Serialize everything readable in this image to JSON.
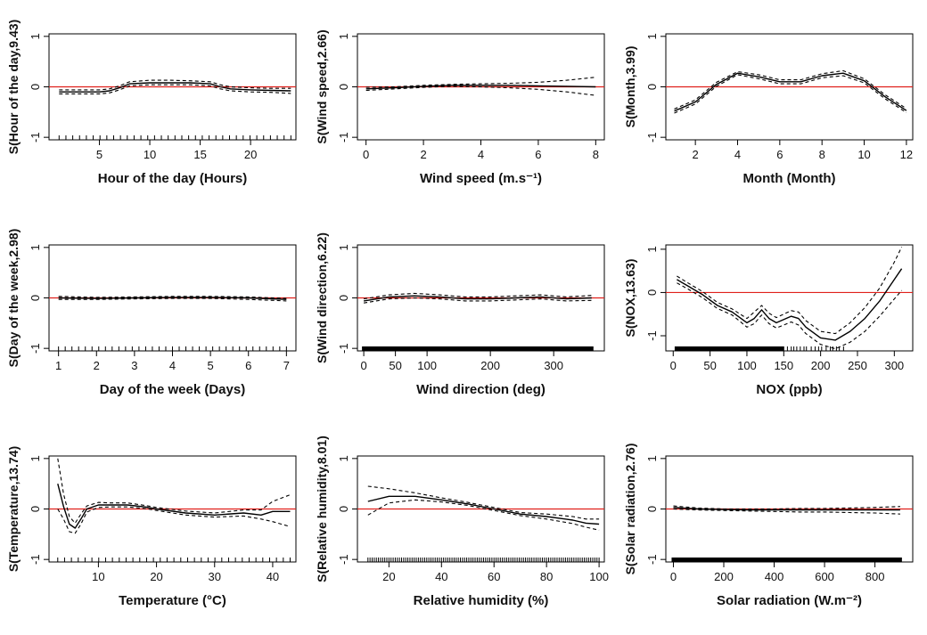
{
  "chart_data": [
    {
      "type": "line",
      "xlabel": "Hour of the day (Hours)",
      "ylabel": "S(Hour of the day,9.43)",
      "xlim": [
        0,
        24.5
      ],
      "ylim": [
        -1.05,
        1.05
      ],
      "xticks": [
        5,
        10,
        15,
        20
      ],
      "yticks": [
        -1.0,
        0.0,
        1.0
      ],
      "rug": "sparse",
      "series": [
        {
          "role": "estimate",
          "x": [
            1,
            3,
            5,
            6,
            7,
            8,
            10,
            12,
            14,
            16,
            17,
            18,
            20,
            22,
            24
          ],
          "values": [
            -0.1,
            -0.1,
            -0.1,
            -0.08,
            -0.02,
            0.06,
            0.08,
            0.08,
            0.08,
            0.06,
            0.0,
            -0.04,
            -0.06,
            -0.07,
            -0.08
          ]
        },
        {
          "role": "upper",
          "x": [
            1,
            3,
            5,
            6,
            7,
            8,
            10,
            12,
            14,
            16,
            17,
            18,
            20,
            22,
            24
          ],
          "values": [
            -0.06,
            -0.06,
            -0.06,
            -0.04,
            0.02,
            0.1,
            0.13,
            0.13,
            0.12,
            0.1,
            0.04,
            0.0,
            -0.02,
            -0.03,
            -0.03
          ]
        },
        {
          "role": "lower",
          "x": [
            1,
            3,
            5,
            6,
            7,
            8,
            10,
            12,
            14,
            16,
            17,
            18,
            20,
            22,
            24
          ],
          "values": [
            -0.14,
            -0.14,
            -0.14,
            -0.12,
            -0.06,
            0.02,
            0.04,
            0.04,
            0.04,
            0.02,
            -0.04,
            -0.08,
            -0.1,
            -0.11,
            -0.13
          ]
        }
      ]
    },
    {
      "type": "line",
      "xlabel": "Wind speed (m.s⁻¹)",
      "ylabel": "S(Wind speed,2.66)",
      "xlim": [
        -0.3,
        8.3
      ],
      "ylim": [
        -1.05,
        1.05
      ],
      "xticks": [
        0,
        2,
        4,
        6,
        8
      ],
      "yticks": [
        -1.0,
        0.0,
        1.0
      ],
      "rug": "none",
      "series": [
        {
          "role": "estimate",
          "x": [
            0,
            1,
            2,
            3,
            4,
            5,
            6,
            7,
            8
          ],
          "values": [
            -0.04,
            -0.02,
            0.01,
            0.03,
            0.03,
            0.03,
            0.02,
            0.01,
            0.0
          ]
        },
        {
          "role": "upper",
          "x": [
            0,
            1,
            2,
            3,
            4,
            5,
            6,
            7,
            8
          ],
          "values": [
            -0.01,
            0.0,
            0.03,
            0.05,
            0.06,
            0.07,
            0.09,
            0.13,
            0.19
          ]
        },
        {
          "role": "lower",
          "x": [
            0,
            1,
            2,
            3,
            4,
            5,
            6,
            7,
            8
          ],
          "values": [
            -0.07,
            -0.04,
            -0.01,
            0.01,
            0.0,
            -0.02,
            -0.05,
            -0.1,
            -0.17
          ]
        }
      ]
    },
    {
      "type": "line",
      "xlabel": "Month (Month)",
      "ylabel": "S(Month,3.99)",
      "xlim": [
        0.6,
        12.3
      ],
      "ylim": [
        -1.05,
        1.05
      ],
      "xticks": [
        2,
        4,
        6,
        8,
        10,
        12
      ],
      "yticks": [
        -1.0,
        0.0,
        1.0
      ],
      "rug": "none",
      "series": [
        {
          "role": "estimate",
          "x": [
            1,
            2,
            3,
            4,
            5,
            6,
            7,
            8,
            9,
            10,
            11,
            12
          ],
          "values": [
            -0.48,
            -0.3,
            0.05,
            0.27,
            0.2,
            0.1,
            0.1,
            0.22,
            0.27,
            0.12,
            -0.2,
            -0.47
          ]
        },
        {
          "role": "upper",
          "x": [
            1,
            2,
            3,
            4,
            5,
            6,
            7,
            8,
            9,
            10,
            11,
            12
          ],
          "values": [
            -0.44,
            -0.26,
            0.09,
            0.3,
            0.24,
            0.14,
            0.14,
            0.26,
            0.32,
            0.16,
            -0.16,
            -0.43
          ]
        },
        {
          "role": "lower",
          "x": [
            1,
            2,
            3,
            4,
            5,
            6,
            7,
            8,
            9,
            10,
            11,
            12
          ],
          "values": [
            -0.52,
            -0.34,
            0.01,
            0.24,
            0.16,
            0.06,
            0.06,
            0.18,
            0.22,
            0.08,
            -0.24,
            -0.51
          ]
        }
      ]
    },
    {
      "type": "line",
      "xlabel": "Day of the week (Days)",
      "ylabel": "S(Day of the week,2.98)",
      "xlim": [
        0.75,
        7.25
      ],
      "ylim": [
        -1.05,
        1.05
      ],
      "xticks": [
        1,
        2,
        3,
        4,
        5,
        6,
        7
      ],
      "yticks": [
        -1.0,
        0.0,
        1.0
      ],
      "rug": "sparse",
      "series": [
        {
          "role": "estimate",
          "x": [
            1,
            2,
            3,
            4,
            5,
            6,
            7
          ],
          "values": [
            0.0,
            -0.01,
            0.0,
            0.01,
            0.01,
            0.0,
            -0.03
          ]
        },
        {
          "role": "upper",
          "x": [
            1,
            2,
            3,
            4,
            5,
            6,
            7
          ],
          "values": [
            0.03,
            0.01,
            0.02,
            0.03,
            0.03,
            0.02,
            -0.01
          ]
        },
        {
          "role": "lower",
          "x": [
            1,
            2,
            3,
            4,
            5,
            6,
            7
          ],
          "values": [
            -0.03,
            -0.03,
            -0.02,
            -0.01,
            -0.01,
            -0.03,
            -0.06
          ]
        }
      ]
    },
    {
      "type": "line",
      "xlabel": "Wind direction (deg)",
      "ylabel": "S(Wind direction,6.22)",
      "xlim": [
        -10,
        380
      ],
      "ylim": [
        -1.05,
        1.05
      ],
      "xticks": [
        0,
        50,
        100,
        200,
        300
      ],
      "yticks": [
        -1.0,
        0.0,
        1.0
      ],
      "rug": "dense",
      "series": [
        {
          "role": "estimate",
          "x": [
            0,
            40,
            80,
            120,
            160,
            200,
            240,
            280,
            320,
            360
          ],
          "values": [
            -0.06,
            0.02,
            0.04,
            0.02,
            -0.02,
            -0.02,
            0.0,
            0.02,
            -0.02,
            0.0
          ]
        },
        {
          "role": "upper",
          "x": [
            0,
            40,
            80,
            120,
            160,
            200,
            240,
            280,
            320,
            360
          ],
          "values": [
            -0.02,
            0.06,
            0.09,
            0.06,
            0.02,
            0.02,
            0.04,
            0.06,
            0.02,
            0.05
          ]
        },
        {
          "role": "lower",
          "x": [
            0,
            40,
            80,
            120,
            160,
            200,
            240,
            280,
            320,
            360
          ],
          "values": [
            -0.1,
            -0.02,
            0.0,
            -0.02,
            -0.06,
            -0.06,
            -0.04,
            -0.02,
            -0.06,
            -0.05
          ]
        }
      ]
    },
    {
      "type": "line",
      "xlabel": "NOX (ppb)",
      "ylabel": "S(NOX,13.63)",
      "xlim": [
        -10,
        325
      ],
      "ylim": [
        -1.35,
        1.1
      ],
      "xticks": [
        0,
        50,
        100,
        150,
        200,
        250,
        300
      ],
      "yticks": [
        -1,
        0,
        1
      ],
      "rug": "dense-partial",
      "series": [
        {
          "role": "estimate",
          "x": [
            5,
            20,
            40,
            60,
            80,
            100,
            110,
            120,
            130,
            140,
            160,
            170,
            180,
            200,
            220,
            240,
            260,
            280,
            300,
            310
          ],
          "values": [
            0.3,
            0.15,
            -0.05,
            -0.3,
            -0.45,
            -0.7,
            -0.6,
            -0.4,
            -0.6,
            -0.7,
            -0.55,
            -0.6,
            -0.8,
            -1.05,
            -1.1,
            -0.9,
            -0.6,
            -0.2,
            0.3,
            0.55
          ]
        },
        {
          "role": "upper",
          "x": [
            5,
            20,
            40,
            60,
            80,
            100,
            110,
            120,
            130,
            140,
            160,
            170,
            180,
            200,
            220,
            240,
            260,
            280,
            300,
            310
          ],
          "values": [
            0.38,
            0.22,
            0.02,
            -0.23,
            -0.38,
            -0.6,
            -0.45,
            -0.3,
            -0.48,
            -0.58,
            -0.42,
            -0.45,
            -0.65,
            -0.9,
            -0.95,
            -0.7,
            -0.35,
            0.1,
            0.7,
            1.05
          ]
        },
        {
          "role": "lower",
          "x": [
            5,
            20,
            40,
            60,
            80,
            100,
            110,
            120,
            130,
            140,
            160,
            170,
            180,
            200,
            220,
            240,
            260,
            280,
            300,
            310
          ],
          "values": [
            0.22,
            0.08,
            -0.12,
            -0.37,
            -0.52,
            -0.8,
            -0.72,
            -0.52,
            -0.72,
            -0.82,
            -0.68,
            -0.75,
            -0.95,
            -1.2,
            -1.3,
            -1.15,
            -0.9,
            -0.55,
            -0.15,
            0.05
          ]
        }
      ]
    },
    {
      "type": "line",
      "xlabel": "Temperature (°C)",
      "ylabel": "S(Temperature,13.74)",
      "xlim": [
        1.5,
        44
      ],
      "ylim": [
        -1.05,
        1.05
      ],
      "xticks": [
        10,
        20,
        30,
        40
      ],
      "yticks": [
        -1.0,
        0.0,
        1.0
      ],
      "rug": "sparse",
      "series": [
        {
          "role": "estimate",
          "x": [
            3,
            4,
            5,
            6,
            7,
            8,
            10,
            12,
            15,
            18,
            20,
            25,
            30,
            35,
            38,
            40,
            43
          ],
          "values": [
            0.5,
            0.05,
            -0.3,
            -0.38,
            -0.2,
            0.0,
            0.08,
            0.08,
            0.08,
            0.04,
            0.0,
            -0.08,
            -0.12,
            -0.08,
            -0.12,
            -0.05,
            -0.05
          ]
        },
        {
          "role": "upper",
          "x": [
            3,
            4,
            5,
            6,
            7,
            8,
            10,
            12,
            15,
            18,
            20,
            25,
            30,
            35,
            38,
            40,
            43
          ],
          "values": [
            1.0,
            0.3,
            -0.15,
            -0.28,
            -0.1,
            0.06,
            0.13,
            0.12,
            0.12,
            0.07,
            0.03,
            -0.04,
            -0.08,
            -0.02,
            -0.02,
            0.15,
            0.28
          ]
        },
        {
          "role": "lower",
          "x": [
            3,
            4,
            5,
            6,
            7,
            8,
            10,
            12,
            15,
            18,
            20,
            25,
            30,
            35,
            38,
            40,
            43
          ],
          "values": [
            0.0,
            -0.2,
            -0.45,
            -0.48,
            -0.3,
            -0.06,
            0.03,
            0.04,
            0.04,
            0.01,
            -0.03,
            -0.12,
            -0.16,
            -0.14,
            -0.2,
            -0.25,
            -0.35
          ]
        }
      ]
    },
    {
      "type": "line",
      "xlabel": "Relative humidity (%)",
      "ylabel": "S(Relative humidity,8.01)",
      "xlim": [
        8,
        102
      ],
      "ylim": [
        -1.05,
        1.05
      ],
      "xticks": [
        20,
        40,
        60,
        80,
        100
      ],
      "yticks": [
        -1.0,
        0.0,
        1.0
      ],
      "rug": "dense-light",
      "series": [
        {
          "role": "estimate",
          "x": [
            12,
            20,
            30,
            40,
            50,
            60,
            70,
            80,
            90,
            95,
            100
          ],
          "values": [
            0.15,
            0.25,
            0.25,
            0.18,
            0.1,
            0.0,
            -0.1,
            -0.15,
            -0.22,
            -0.28,
            -0.3
          ]
        },
        {
          "role": "upper",
          "x": [
            12,
            20,
            30,
            40,
            50,
            60,
            70,
            80,
            90,
            95,
            100
          ],
          "values": [
            0.45,
            0.4,
            0.32,
            0.22,
            0.13,
            0.03,
            -0.07,
            -0.1,
            -0.15,
            -0.2,
            -0.2
          ]
        },
        {
          "role": "lower",
          "x": [
            12,
            20,
            30,
            40,
            50,
            60,
            70,
            80,
            90,
            95,
            100
          ],
          "values": [
            -0.12,
            0.12,
            0.18,
            0.14,
            0.07,
            -0.03,
            -0.13,
            -0.2,
            -0.29,
            -0.36,
            -0.42
          ]
        }
      ]
    },
    {
      "type": "line",
      "xlabel": "Solar radiation (W.m⁻²)",
      "ylabel": "S(Solar radiation,2.76)",
      "xlim": [
        -30,
        950
      ],
      "ylim": [
        -1.05,
        1.05
      ],
      "xticks": [
        0,
        200,
        400,
        600,
        800
      ],
      "yticks": [
        -1.0,
        0.0,
        1.0
      ],
      "rug": "dense",
      "series": [
        {
          "role": "estimate",
          "x": [
            0,
            100,
            200,
            300,
            400,
            500,
            600,
            700,
            800,
            900
          ],
          "values": [
            0.03,
            0.0,
            -0.01,
            -0.02,
            -0.02,
            -0.02,
            -0.02,
            -0.02,
            -0.02,
            -0.02
          ]
        },
        {
          "role": "upper",
          "x": [
            0,
            100,
            200,
            300,
            400,
            500,
            600,
            700,
            800,
            900
          ],
          "values": [
            0.06,
            0.02,
            0.0,
            0.0,
            0.0,
            0.01,
            0.01,
            0.02,
            0.03,
            0.05
          ]
        },
        {
          "role": "lower",
          "x": [
            0,
            100,
            200,
            300,
            400,
            500,
            600,
            700,
            800,
            900
          ],
          "values": [
            0.0,
            -0.02,
            -0.03,
            -0.04,
            -0.05,
            -0.06,
            -0.06,
            -0.07,
            -0.08,
            -0.1
          ]
        }
      ]
    }
  ]
}
